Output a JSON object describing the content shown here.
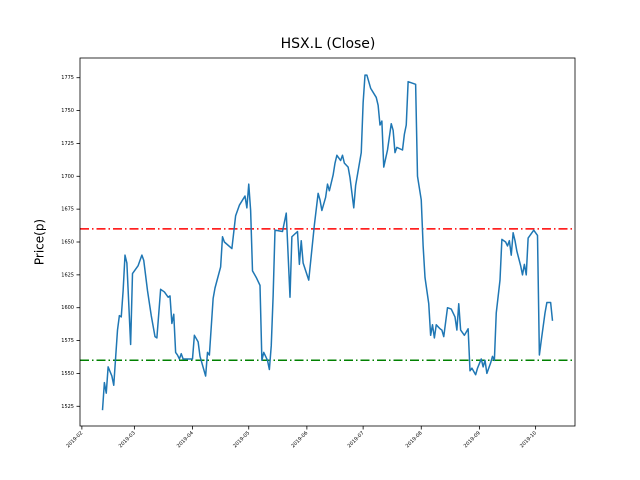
{
  "chart_data": {
    "type": "line",
    "title": "HSX.L (Close)",
    "ylabel": "Price(p)",
    "color": "#1f77b4",
    "x": [
      43,
      44,
      45,
      46,
      48,
      49,
      51,
      52,
      53,
      54,
      55,
      56,
      58,
      59,
      62,
      64,
      65,
      67,
      69,
      71,
      72,
      74,
      76,
      78,
      79,
      80,
      81,
      82,
      83,
      84,
      85,
      86,
      91,
      92,
      94,
      95,
      98,
      99,
      100,
      102,
      103,
      106,
      107,
      108,
      112,
      114,
      116,
      119,
      120,
      121,
      122,
      123,
      125,
      127,
      128,
      129,
      131,
      132,
      133,
      134,
      135,
      139,
      141,
      143,
      144,
      147,
      148,
      149,
      150,
      153,
      156,
      158,
      159,
      160,
      162,
      163,
      164,
      166,
      167,
      168,
      170,
      171,
      172,
      174,
      175,
      177,
      178,
      181,
      182,
      183,
      184,
      186,
      189,
      190,
      191,
      192,
      193,
      195,
      197,
      198,
      199,
      200,
      203,
      204,
      205,
      206,
      210,
      211,
      213,
      214,
      215,
      217,
      218,
      219,
      220,
      221,
      223,
      224,
      225,
      227,
      229,
      231,
      232,
      233,
      234,
      236,
      238,
      239,
      240,
      242,
      243,
      245,
      246,
      247,
      248,
      250,
      251,
      252,
      253,
      255,
      256,
      258,
      259,
      260,
      261,
      262,
      263,
      264,
      266,
      267,
      268,
      269,
      270,
      273,
      275,
      276,
      277,
      279,
      280,
      282,
      283
    ],
    "values": [
      1522,
      1543,
      1535,
      1555,
      1548,
      1541,
      1583,
      1594,
      1593,
      1613,
      1640,
      1634,
      1572,
      1626,
      1632,
      1640,
      1636,
      1613,
      1594,
      1578,
      1577,
      1614,
      1612,
      1608,
      1609,
      1588,
      1595,
      1566,
      1564,
      1561,
      1565,
      1561,
      1561,
      1579,
      1574,
      1563,
      1548,
      1566,
      1564,
      1607,
      1615,
      1631,
      1654,
      1650,
      1645,
      1670,
      1678,
      1685,
      1676,
      1694,
      1674,
      1628,
      1623,
      1617,
      1560,
      1566,
      1560,
      1553,
      1571,
      1609,
      1659,
      1658,
      1672,
      1608,
      1654,
      1658,
      1633,
      1651,
      1634,
      1621,
      1663,
      1687,
      1682,
      1674,
      1684,
      1694,
      1689,
      1701,
      1710,
      1716,
      1712,
      1716,
      1710,
      1707,
      1699,
      1676,
      1693,
      1718,
      1756,
      1777,
      1777,
      1767,
      1760,
      1754,
      1739,
      1742,
      1707,
      1720,
      1740,
      1735,
      1718,
      1722,
      1720,
      1732,
      1739,
      1772,
      1770,
      1700,
      1682,
      1647,
      1623,
      1603,
      1579,
      1587,
      1577,
      1587,
      1584,
      1583,
      1578,
      1600,
      1599,
      1593,
      1583,
      1603,
      1583,
      1579,
      1584,
      1552,
      1554,
      1549,
      1554,
      1561,
      1555,
      1560,
      1550,
      1558,
      1563,
      1560,
      1596,
      1621,
      1652,
      1650,
      1647,
      1651,
      1640,
      1657,
      1651,
      1643,
      1632,
      1625,
      1633,
      1625,
      1653,
      1659,
      1655,
      1564,
      1575,
      1596,
      1604,
      1604,
      1590
    ],
    "xlim": [
      31,
      295
    ],
    "xticks": [
      {
        "value": 32,
        "label": "2019-02"
      },
      {
        "value": 60,
        "label": "2019-03"
      },
      {
        "value": 91,
        "label": "2019-04"
      },
      {
        "value": 121,
        "label": "2019-05"
      },
      {
        "value": 152,
        "label": "2019-06"
      },
      {
        "value": 182,
        "label": "2019-07"
      },
      {
        "value": 213,
        "label": "2019-08"
      },
      {
        "value": 244,
        "label": "2019-09"
      },
      {
        "value": 274,
        "label": "2019-10"
      }
    ],
    "ylim": [
      1510,
      1790
    ],
    "yticks": [
      1525,
      1550,
      1575,
      1600,
      1625,
      1650,
      1675,
      1700,
      1725,
      1750,
      1775
    ],
    "hlines": [
      {
        "value": 1660,
        "color": "#ff0000",
        "linestyle": "dashdot"
      },
      {
        "value": 1560,
        "color": "#008000",
        "linestyle": "dashdot"
      }
    ]
  }
}
